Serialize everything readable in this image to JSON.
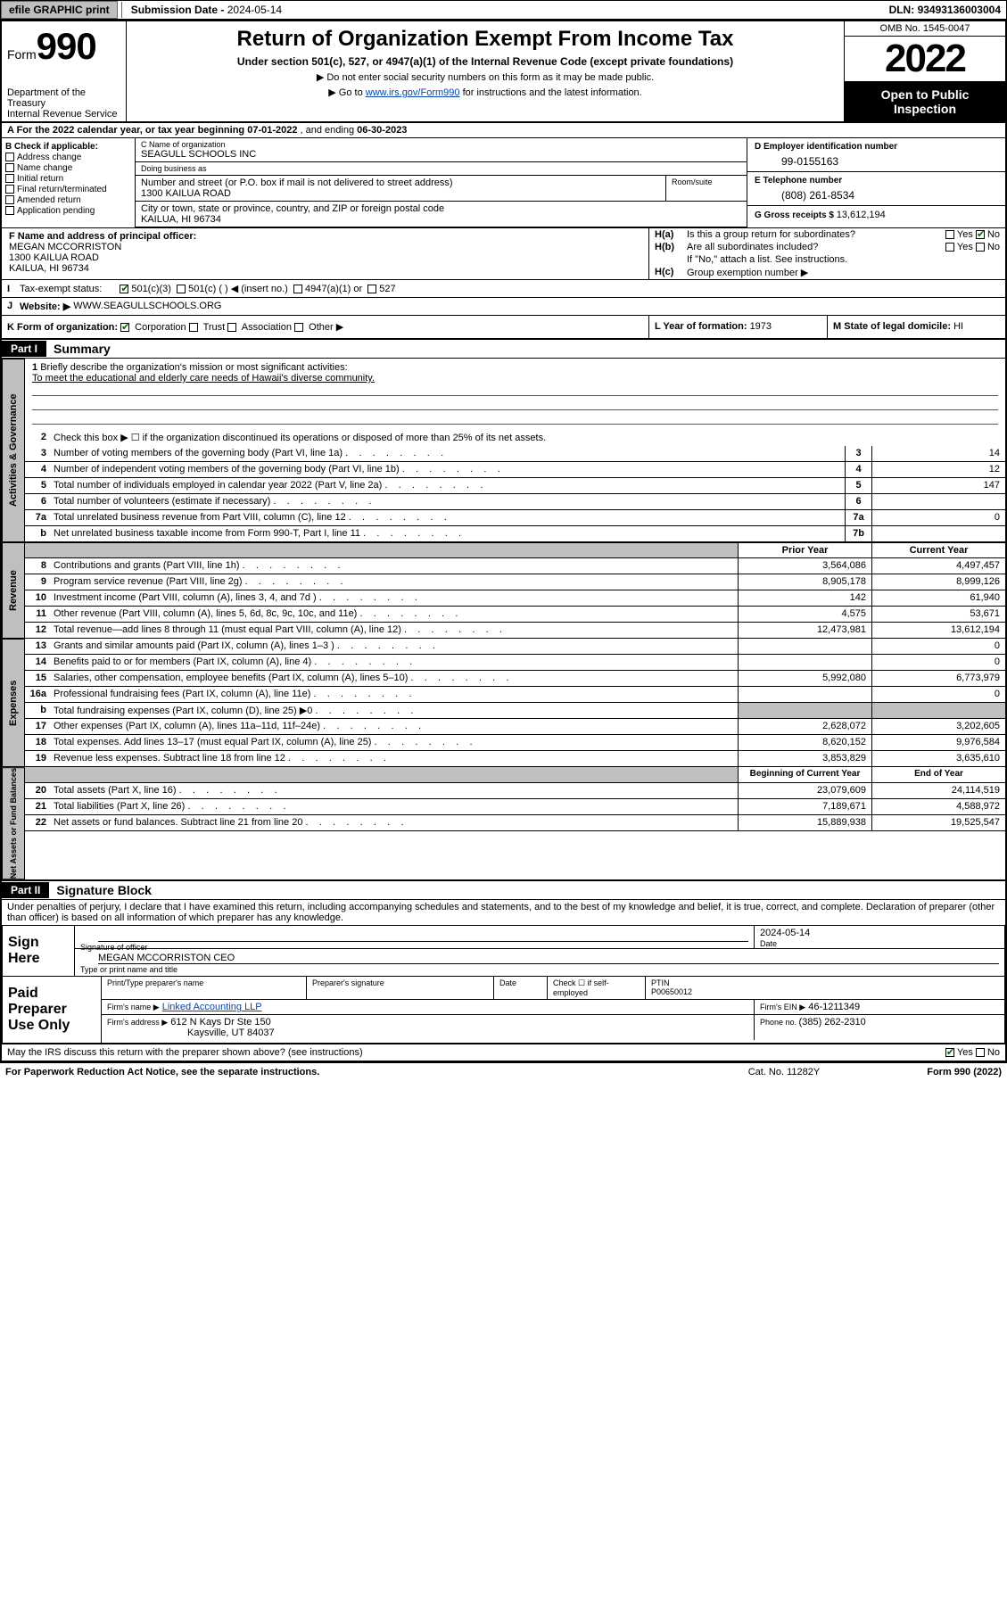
{
  "topbar": {
    "efile": "efile GRAPHIC print",
    "submission_label": "Submission Date - ",
    "submission_date": "2024-05-14",
    "dln_label": "DLN: ",
    "dln": "93493136003004"
  },
  "header": {
    "form_prefix": "Form",
    "form_number": "990",
    "title": "Return of Organization Exempt From Income Tax",
    "subtitle": "Under section 501(c), 527, or 4947(a)(1) of the Internal Revenue Code (except private foundations)",
    "note1": "Do not enter social security numbers on this form as it may be made public.",
    "note2_pre": "Go to ",
    "note2_link": "www.irs.gov/Form990",
    "note2_post": " for instructions and the latest information.",
    "omb": "OMB No. 1545-0047",
    "year": "2022",
    "openpub": "Open to Public Inspection",
    "dept": "Department of the Treasury\nInternal Revenue Service"
  },
  "period": {
    "label_a": "A For the 2022 calendar year, or tax year beginning ",
    "begin": "07-01-2022",
    "mid": " , and ending ",
    "end": "06-30-2023"
  },
  "sectionB": {
    "title": "B Check if applicable:",
    "opts": [
      "Address change",
      "Name change",
      "Initial return",
      "Final return/terminated",
      "Amended return",
      "Application pending"
    ]
  },
  "sectionC": {
    "name_label": "C Name of organization",
    "name": "SEAGULL SCHOOLS INC",
    "dba_label": "Doing business as",
    "dba": "",
    "street_label": "Number and street (or P.O. box if mail is not delivered to street address)",
    "street": "1300 KAILUA ROAD",
    "suite_label": "Room/suite",
    "city_label": "City or town, state or province, country, and ZIP or foreign postal code",
    "city": "KAILUA, HI  96734"
  },
  "sectionD": {
    "label": "D Employer identification number",
    "value": "99-0155163"
  },
  "sectionE": {
    "label": "E Telephone number",
    "value": "(808) 261-8534"
  },
  "sectionG": {
    "label": "G Gross receipts $ ",
    "value": "13,612,194"
  },
  "sectionF": {
    "label": "F Name and address of principal officer:",
    "name": "MEGAN MCCORRISTON",
    "street": "1300 KAILUA ROAD",
    "city": "KAILUA, HI  96734"
  },
  "sectionH": {
    "ha_label": "H(a)",
    "ha_text": "Is this a group return for subordinates?",
    "ha_yes": "Yes",
    "ha_no": "No",
    "hb_label": "H(b)",
    "hb_text": "Are all subordinates included?",
    "hb_note": "If \"No,\" attach a list. See instructions.",
    "hc_label": "H(c)",
    "hc_text": "Group exemption number ▶"
  },
  "sectionI": {
    "label": "I",
    "title": "Tax-exempt status:",
    "opts": [
      "501(c)(3)",
      "501(c) ( ) ◀ (insert no.)",
      "4947(a)(1) or",
      "527"
    ]
  },
  "sectionJ": {
    "label": "J",
    "title": "Website: ▶",
    "value": "WWW.SEAGULLSCHOOLS.ORG"
  },
  "sectionK": {
    "label": "K Form of organization:",
    "opts": [
      "Corporation",
      "Trust",
      "Association",
      "Other ▶"
    ]
  },
  "sectionL": {
    "label": "L Year of formation: ",
    "value": "1973"
  },
  "sectionM": {
    "label": "M State of legal domicile: ",
    "value": "HI"
  },
  "part1": {
    "hdr": "Part I",
    "title": "Summary",
    "line1_label": "1",
    "line1_text": "Briefly describe the organization's mission or most significant activities:",
    "mission": "To meet the educational and elderly care needs of Hawaii's diverse community.",
    "line2_label": "2",
    "line2_text": "Check this box ▶ ☐ if the organization discontinued its operations or disposed of more than 25% of its net assets.",
    "governance_side": "Activities & Governance",
    "revenue_side": "Revenue",
    "expenses_side": "Expenses",
    "netassets_side": "Net Assets or Fund Balances",
    "lines_gov": [
      {
        "n": "3",
        "t": "Number of voting members of the governing body (Part VI, line 1a)",
        "box": "3",
        "v": "14"
      },
      {
        "n": "4",
        "t": "Number of independent voting members of the governing body (Part VI, line 1b)",
        "box": "4",
        "v": "12"
      },
      {
        "n": "5",
        "t": "Total number of individuals employed in calendar year 2022 (Part V, line 2a)",
        "box": "5",
        "v": "147"
      },
      {
        "n": "6",
        "t": "Total number of volunteers (estimate if necessary)",
        "box": "6",
        "v": ""
      },
      {
        "n": "7a",
        "t": "Total unrelated business revenue from Part VIII, column (C), line 12",
        "box": "7a",
        "v": "0"
      },
      {
        "n": "b",
        "t": "Net unrelated business taxable income from Form 990-T, Part I, line 11",
        "box": "7b",
        "v": ""
      }
    ],
    "col_prior": "Prior Year",
    "col_current": "Current Year",
    "lines_rev": [
      {
        "n": "8",
        "t": "Contributions and grants (Part VIII, line 1h)",
        "p": "3,564,086",
        "c": "4,497,457"
      },
      {
        "n": "9",
        "t": "Program service revenue (Part VIII, line 2g)",
        "p": "8,905,178",
        "c": "8,999,126"
      },
      {
        "n": "10",
        "t": "Investment income (Part VIII, column (A), lines 3, 4, and 7d )",
        "p": "142",
        "c": "61,940"
      },
      {
        "n": "11",
        "t": "Other revenue (Part VIII, column (A), lines 5, 6d, 8c, 9c, 10c, and 11e)",
        "p": "4,575",
        "c": "53,671"
      },
      {
        "n": "12",
        "t": "Total revenue—add lines 8 through 11 (must equal Part VIII, column (A), line 12)",
        "p": "12,473,981",
        "c": "13,612,194"
      }
    ],
    "lines_exp": [
      {
        "n": "13",
        "t": "Grants and similar amounts paid (Part IX, column (A), lines 1–3 )",
        "p": "",
        "c": "0"
      },
      {
        "n": "14",
        "t": "Benefits paid to or for members (Part IX, column (A), line 4)",
        "p": "",
        "c": "0"
      },
      {
        "n": "15",
        "t": "Salaries, other compensation, employee benefits (Part IX, column (A), lines 5–10)",
        "p": "5,992,080",
        "c": "6,773,979"
      },
      {
        "n": "16a",
        "t": "Professional fundraising fees (Part IX, column (A), line 11e)",
        "p": "",
        "c": "0"
      },
      {
        "n": "b",
        "t": "Total fundraising expenses (Part IX, column (D), line 25) ▶0",
        "p": "SHADE",
        "c": "SHADE"
      },
      {
        "n": "17",
        "t": "Other expenses (Part IX, column (A), lines 11a–11d, 11f–24e)",
        "p": "2,628,072",
        "c": "3,202,605"
      },
      {
        "n": "18",
        "t": "Total expenses. Add lines 13–17 (must equal Part IX, column (A), line 25)",
        "p": "8,620,152",
        "c": "9,976,584"
      },
      {
        "n": "19",
        "t": "Revenue less expenses. Subtract line 18 from line 12",
        "p": "3,853,829",
        "c": "3,635,610"
      }
    ],
    "col_begin": "Beginning of Current Year",
    "col_end": "End of Year",
    "lines_net": [
      {
        "n": "20",
        "t": "Total assets (Part X, line 16)",
        "p": "23,079,609",
        "c": "24,114,519"
      },
      {
        "n": "21",
        "t": "Total liabilities (Part X, line 26)",
        "p": "7,189,671",
        "c": "4,588,972"
      },
      {
        "n": "22",
        "t": "Net assets or fund balances. Subtract line 21 from line 20",
        "p": "15,889,938",
        "c": "19,525,547"
      }
    ]
  },
  "part2": {
    "hdr": "Part II",
    "title": "Signature Block",
    "decl": "Under penalties of perjury, I declare that I have examined this return, including accompanying schedules and statements, and to the best of my knowledge and belief, it is true, correct, and complete. Declaration of preparer (other than officer) is based on all information of which preparer has any knowledge.",
    "sign_here": "Sign Here",
    "sig_officer_label": "Signature of officer",
    "sig_date_label": "Date",
    "sig_date": "2024-05-14",
    "officer_name": "MEGAN MCCORRISTON CEO",
    "officer_title_label": "Type or print name and title",
    "paid": "Paid Preparer Use Only",
    "prep_name_label": "Print/Type preparer's name",
    "prep_sig_label": "Preparer's signature",
    "prep_date_label": "Date",
    "prep_check": "Check ☐ if self-employed",
    "ptin_label": "PTIN",
    "ptin": "P00650012",
    "firm_name_label": "Firm's name   ▶",
    "firm_name": "Linked Accounting LLP",
    "firm_ein_label": "Firm's EIN ▶",
    "firm_ein": "46-1211349",
    "firm_addr_label": "Firm's address ▶",
    "firm_addr1": "612 N Kays Dr Ste 150",
    "firm_addr2": "Kaysville, UT  84037",
    "phone_label": "Phone no. ",
    "phone": "(385) 262-2310",
    "discuss": "May the IRS discuss this return with the preparer shown above? (see instructions)",
    "discuss_yes": "Yes",
    "discuss_no": "No"
  },
  "footer": {
    "pra": "For Paperwork Reduction Act Notice, see the separate instructions.",
    "cat": "Cat. No. 11282Y",
    "form": "Form 990 (2022)"
  }
}
